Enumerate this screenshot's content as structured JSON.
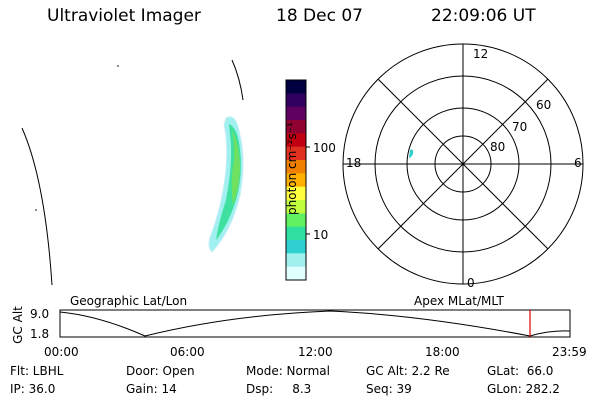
{
  "header": {
    "instrument": "Ultraviolet Imager",
    "date": "18 Dec 07",
    "time": "22:09:06 UT"
  },
  "colorbar": {
    "label": "photon cm⁻²s⁻¹",
    "ticks": [
      "100",
      "10"
    ],
    "colors": [
      "#000040",
      "#300060",
      "#600060",
      "#900030",
      "#c00010",
      "#e03020",
      "#f08000",
      "#ffb000",
      "#ffff40",
      "#c0ff40",
      "#60f060",
      "#30e0a0",
      "#30d0d0",
      "#a0f0f0",
      "#e0ffff"
    ]
  },
  "polar_plot": {
    "mlt_labels": [
      "12",
      "18",
      "6",
      "0"
    ],
    "lat_labels": [
      "60",
      "70",
      "80"
    ]
  },
  "orbit_panel": {
    "left_label": "Geographic Lat/Lon",
    "right_label": "Apex  MLat/MLT",
    "axis_label": "GC Alt",
    "y_ticks": [
      "9.0",
      "1.8"
    ],
    "x_ticks": [
      "00:00",
      "06:00",
      "12:00",
      "18:00",
      "23:59"
    ],
    "current_marker_color": "#e00000"
  },
  "info": {
    "row1": [
      "Flt: LBHL",
      "Door: Open",
      "Mode: Normal",
      "GC Alt: 2.2 Re",
      "GLat:  66.0"
    ],
    "row2": [
      "IP: 36.0",
      "Gain: 14",
      "Dsp:     8.3",
      "Seq: 39",
      "GLon: 282.2"
    ]
  }
}
